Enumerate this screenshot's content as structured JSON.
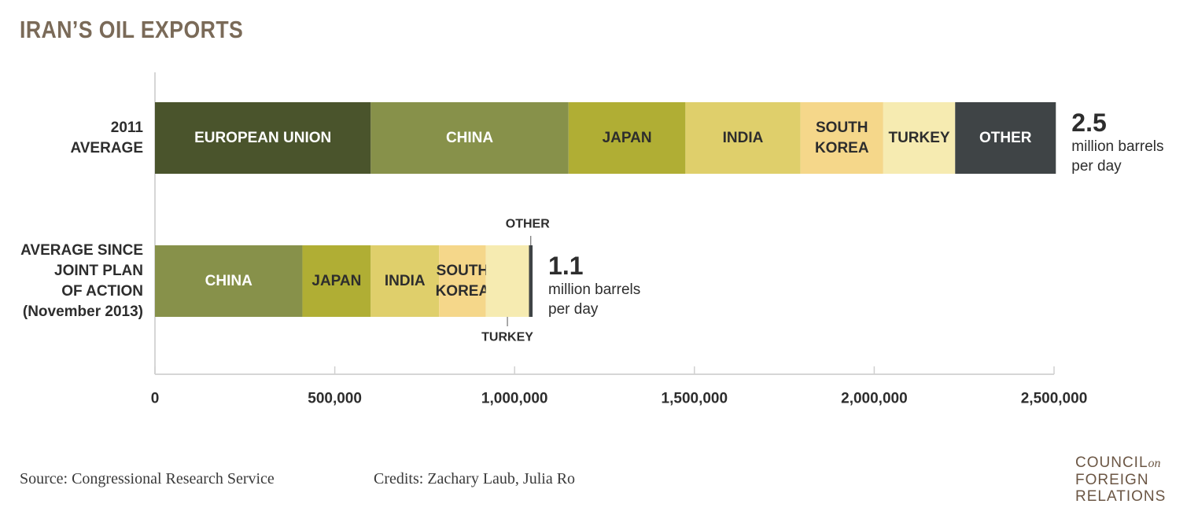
{
  "title": "IRAN’S OIL EXPORTS",
  "footer": {
    "source": "Source: Congressional Research Service",
    "credits": "Credits: Zachary Laub, Julia Ro"
  },
  "logo": {
    "line1": "COUNCIL",
    "line1_suffix": "on",
    "line2": "FOREIGN",
    "line3": "RELATIONS"
  },
  "chart_data": {
    "type": "bar",
    "orientation": "horizontal",
    "stacked": true,
    "xlim": [
      0,
      2500000
    ],
    "x_ticks": [
      0,
      500000,
      1000000,
      1500000,
      2000000,
      2500000
    ],
    "x_tick_labels": [
      "0",
      "500,000",
      "1,000,000",
      "1,500,000",
      "2,000,000",
      "2,500,000"
    ],
    "grid": false,
    "bars": [
      {
        "category_lines": [
          "2011",
          "AVERAGE"
        ],
        "total_value": "2.5",
        "total_unit_lines": [
          "million barrels",
          "per day"
        ],
        "segments": [
          {
            "name": "EUROPEAN UNION",
            "label_lines": [
              "EUROPEAN UNION"
            ],
            "value": 600000,
            "color": "#4a542c",
            "text_color": "#ffffff"
          },
          {
            "name": "CHINA",
            "label_lines": [
              "CHINA"
            ],
            "value": 550000,
            "color": "#87914a",
            "text_color": "#ffffff"
          },
          {
            "name": "JAPAN",
            "label_lines": [
              "JAPAN"
            ],
            "value": 325000,
            "color": "#b0ae34",
            "text_color": "#2d2d2d"
          },
          {
            "name": "INDIA",
            "label_lines": [
              "INDIA"
            ],
            "value": 320000,
            "color": "#dfcf6b",
            "text_color": "#2d2d2d"
          },
          {
            "name": "SOUTH KOREA",
            "label_lines": [
              "SOUTH",
              "KOREA"
            ],
            "value": 230000,
            "color": "#f5d78a",
            "text_color": "#2d2d2d"
          },
          {
            "name": "TURKEY",
            "label_lines": [
              "TURKEY"
            ],
            "value": 200000,
            "color": "#f6ebb1",
            "text_color": "#2d2d2d"
          },
          {
            "name": "OTHER",
            "label_lines": [
              "OTHER"
            ],
            "value": 280000,
            "color": "#3f4446",
            "text_color": "#ffffff"
          }
        ]
      },
      {
        "category_lines": [
          "AVERAGE SINCE",
          "JOINT PLAN",
          "OF ACTION",
          "(November 2013)"
        ],
        "total_value": "1.1",
        "total_unit_lines": [
          "million barrels",
          "per day"
        ],
        "segments": [
          {
            "name": "CHINA",
            "label_lines": [
              "CHINA"
            ],
            "value": 410000,
            "color": "#87914a",
            "text_color": "#ffffff"
          },
          {
            "name": "JAPAN",
            "label_lines": [
              "JAPAN"
            ],
            "value": 190000,
            "color": "#b0ae34",
            "text_color": "#2d2d2d"
          },
          {
            "name": "INDIA",
            "label_lines": [
              "INDIA"
            ],
            "value": 190000,
            "color": "#dfcf6b",
            "text_color": "#2d2d2d"
          },
          {
            "name": "SOUTH KOREA",
            "label_lines": [
              "SOUTH",
              "KOREA"
            ],
            "value": 130000,
            "color": "#f5d78a",
            "text_color": "#2d2d2d"
          },
          {
            "name": "TURKEY",
            "label_lines": [],
            "callout": "TURKEY",
            "callout_position": "below",
            "value": 120000,
            "color": "#f6ebb1",
            "text_color": "#2d2d2d"
          },
          {
            "name": "OTHER",
            "label_lines": [],
            "callout": "OTHER",
            "callout_position": "above",
            "value": 10000,
            "color": "#3f4446",
            "text_color": "#ffffff"
          }
        ]
      }
    ]
  }
}
